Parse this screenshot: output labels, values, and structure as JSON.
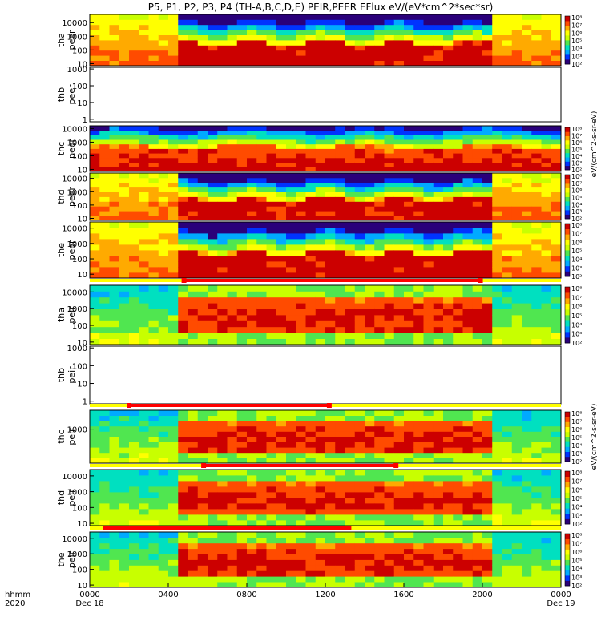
{
  "chart_data": {
    "type": "heatmap",
    "title": "P5, P1, P2, P3, P4 (TH-A,B,C,D,E) PEIR,PEER EFlux eV/(eV*cm^2*sec*sr)",
    "x_axis": {
      "row_labels": [
        "hhmm",
        "2020"
      ],
      "ticks": [
        "0000",
        "0400",
        "0800",
        "1200",
        "1600",
        "2000",
        "0000"
      ],
      "tick_hours": [
        0,
        4,
        8,
        12,
        16,
        20,
        24
      ],
      "dates": [
        "Dec 18",
        "Dec 19"
      ]
    },
    "colorbar_label_peer": "eV/(cm^2-s-sr-eV)",
    "colorbar_label_peir": "eV/(cm^2-s-sr-eV)",
    "panels": [
      {
        "probe": "tha",
        "ylabel": [
          "tha",
          "peer"
        ],
        "yticks": [
          "10",
          "100",
          "1000",
          "10000"
        ],
        "ylim_log": [
          0.85,
          4.6
        ],
        "cbar": [
          "10²",
          "10³",
          "10⁴",
          "10⁵",
          "10⁶",
          "10⁷",
          "10⁸"
        ],
        "profile": "peer"
      },
      {
        "probe": "thb",
        "ylabel": [
          "thb",
          "peer"
        ],
        "yticks": [
          "1",
          "10",
          "100",
          "1000"
        ],
        "ylim_log": [
          -0.15,
          3.1
        ],
        "cbar": [],
        "profile": "empty"
      },
      {
        "probe": "thc",
        "ylabel": [
          "thc",
          "peer"
        ],
        "yticks": [
          "10",
          "100",
          "1000",
          "10000"
        ],
        "ylim_log": [
          0.85,
          4.2
        ],
        "cbar": [
          "10²",
          "10³",
          "10⁴",
          "10⁵",
          "10⁶",
          "10⁷",
          "10⁸"
        ],
        "profile": "peer_c"
      },
      {
        "probe": "thd",
        "ylabel": [
          "thd",
          "peer"
        ],
        "yticks": [
          "10",
          "100",
          "1000",
          "10000"
        ],
        "ylim_log": [
          0.85,
          4.4
        ],
        "cbar": [
          "10²",
          "10³",
          "10⁴",
          "10⁵",
          "10⁶",
          "10⁷",
          "10⁸"
        ],
        "profile": "peer"
      },
      {
        "probe": "the",
        "ylabel": [
          "the",
          "peer"
        ],
        "yticks": [
          "10",
          "100",
          "1000",
          "10000"
        ],
        "ylim_log": [
          0.75,
          4.4
        ],
        "cbar": [
          "10²",
          "10³",
          "10⁴",
          "10⁵",
          "10⁶",
          "10⁷",
          "10⁸"
        ],
        "profile": "peer"
      },
      {
        "probe": "tha",
        "ylabel": [
          "tha",
          "peir"
        ],
        "yticks": [
          "10",
          "100",
          "1000",
          "10000"
        ],
        "ylim_log": [
          0.85,
          4.4
        ],
        "cbar": [
          "10²",
          "10³",
          "10⁴",
          "10⁵",
          "10⁶",
          "10⁷",
          "10⁸"
        ],
        "profile": "peir"
      },
      {
        "probe": "thb",
        "ylabel": [
          "thb",
          "peir"
        ],
        "yticks": [
          "1",
          "10",
          "100",
          "1000"
        ],
        "ylim_log": [
          -0.15,
          3.1
        ],
        "cbar": [],
        "profile": "empty"
      },
      {
        "probe": "thc",
        "ylabel": [
          "thc",
          "peir"
        ],
        "yticks": [
          "1000"
        ],
        "ylim_log": [
          1.2,
          4.0
        ],
        "cbar": [
          "10²",
          "10³",
          "10⁴",
          "10⁵",
          "10⁶",
          "10⁷",
          "10⁸"
        ],
        "profile": "peir_c"
      },
      {
        "probe": "thd",
        "ylabel": [
          "thd",
          "peir"
        ],
        "yticks": [
          "10",
          "100",
          "1000",
          "10000"
        ],
        "ylim_log": [
          0.85,
          4.4
        ],
        "cbar": [
          "10²",
          "10³",
          "10⁴",
          "10⁵",
          "10⁶",
          "10⁷",
          "10⁸"
        ],
        "profile": "peir"
      },
      {
        "probe": "the",
        "ylabel": [
          "the",
          "peir"
        ],
        "yticks": [
          "10",
          "100",
          "1000",
          "10000"
        ],
        "ylim_log": [
          0.85,
          4.4
        ],
        "cbar": [
          "10²",
          "10³",
          "10⁴",
          "10⁵",
          "10⁶",
          "10⁷",
          "10⁸"
        ],
        "profile": "peir"
      }
    ],
    "mode_bars": [
      {
        "above_panel": 5,
        "segments": [
          {
            "color": "#ffff00",
            "start_h": 0,
            "end_h": 24
          },
          {
            "color": "#ff0000",
            "start_h": 4.8,
            "end_h": 19.9
          }
        ]
      },
      {
        "above_panel": 7,
        "segments": [
          {
            "color": "#ffff00",
            "start_h": 0,
            "end_h": 24
          },
          {
            "color": "#ff0000",
            "start_h": 2.0,
            "end_h": 12.2
          }
        ]
      },
      {
        "above_panel": 8,
        "segments": [
          {
            "color": "#ffff00",
            "start_h": 0,
            "end_h": 24
          },
          {
            "color": "#ff0000",
            "start_h": 5.8,
            "end_h": 15.6
          }
        ]
      },
      {
        "above_panel": 9,
        "segments": [
          {
            "color": "#ffff00",
            "start_h": 0,
            "end_h": 24
          },
          {
            "color": "#ff0000",
            "start_h": 0.8,
            "end_h": 13.2
          }
        ]
      }
    ],
    "colors": {
      "colormap": [
        "#2a007a",
        "#0033ff",
        "#00aaff",
        "#00e0c0",
        "#50e650",
        "#c8ff00",
        "#ffff00",
        "#ffaa00",
        "#ff4b00",
        "#cc0000"
      ],
      "axis": "#000000"
    }
  }
}
